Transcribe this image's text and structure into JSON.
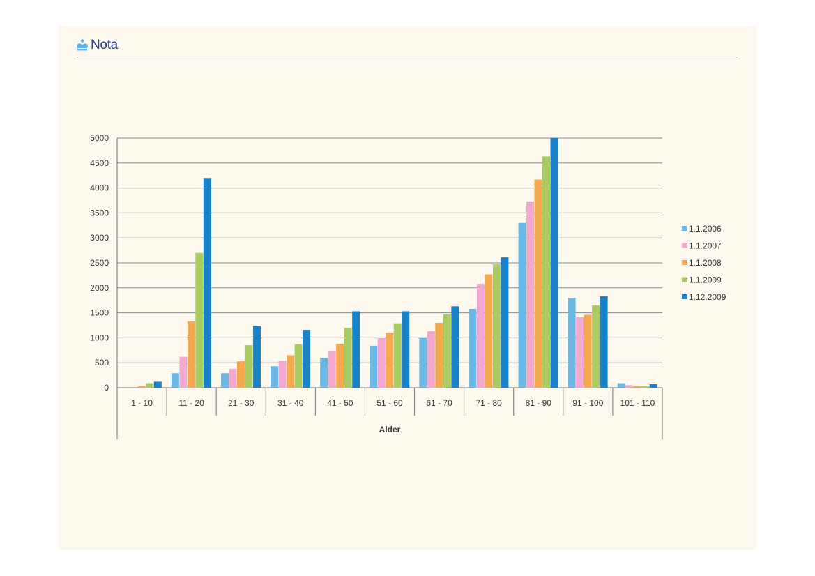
{
  "header": {
    "brand_text": "Nota",
    "brand_icon": "crown-logo-icon",
    "brand_color": "#2a3f88",
    "icon_color": "#5cb0e0"
  },
  "chart_data": {
    "type": "bar",
    "title": "",
    "xlabel": "Alder",
    "ylabel": "",
    "ylim": [
      0,
      5000
    ],
    "yticks": [
      0,
      500,
      1000,
      1500,
      2000,
      2500,
      3000,
      3500,
      4000,
      4500,
      5000
    ],
    "grid": true,
    "legend_position": "right",
    "categories": [
      "1 - 10",
      "11 - 20",
      "21 - 30",
      "31 - 40",
      "41 - 50",
      "51 - 60",
      "61 - 70",
      "71 - 80",
      "81 - 90",
      "91 - 100",
      "101 - 110"
    ],
    "series": [
      {
        "name": "1.1.2006",
        "color": "#6cb8e4",
        "values": [
          0,
          290,
          290,
          430,
          600,
          840,
          1010,
          1580,
          3300,
          1800,
          90
        ]
      },
      {
        "name": "1.1.2007",
        "color": "#f2a8d0",
        "values": [
          0,
          620,
          380,
          540,
          730,
          1000,
          1130,
          2080,
          3730,
          1410,
          50
        ]
      },
      {
        "name": "1.1.2008",
        "color": "#f5a94e",
        "values": [
          30,
          1330,
          530,
          650,
          880,
          1100,
          1300,
          2270,
          4170,
          1460,
          40
        ]
      },
      {
        "name": "1.1.2009",
        "color": "#a9cb62",
        "values": [
          90,
          2700,
          850,
          870,
          1200,
          1290,
          1470,
          2470,
          4630,
          1650,
          30
        ]
      },
      {
        "name": "1.12.2009",
        "color": "#1a82c8",
        "values": [
          120,
          4200,
          1240,
          1160,
          1530,
          1530,
          1630,
          2610,
          5000,
          1830,
          70
        ]
      }
    ]
  }
}
